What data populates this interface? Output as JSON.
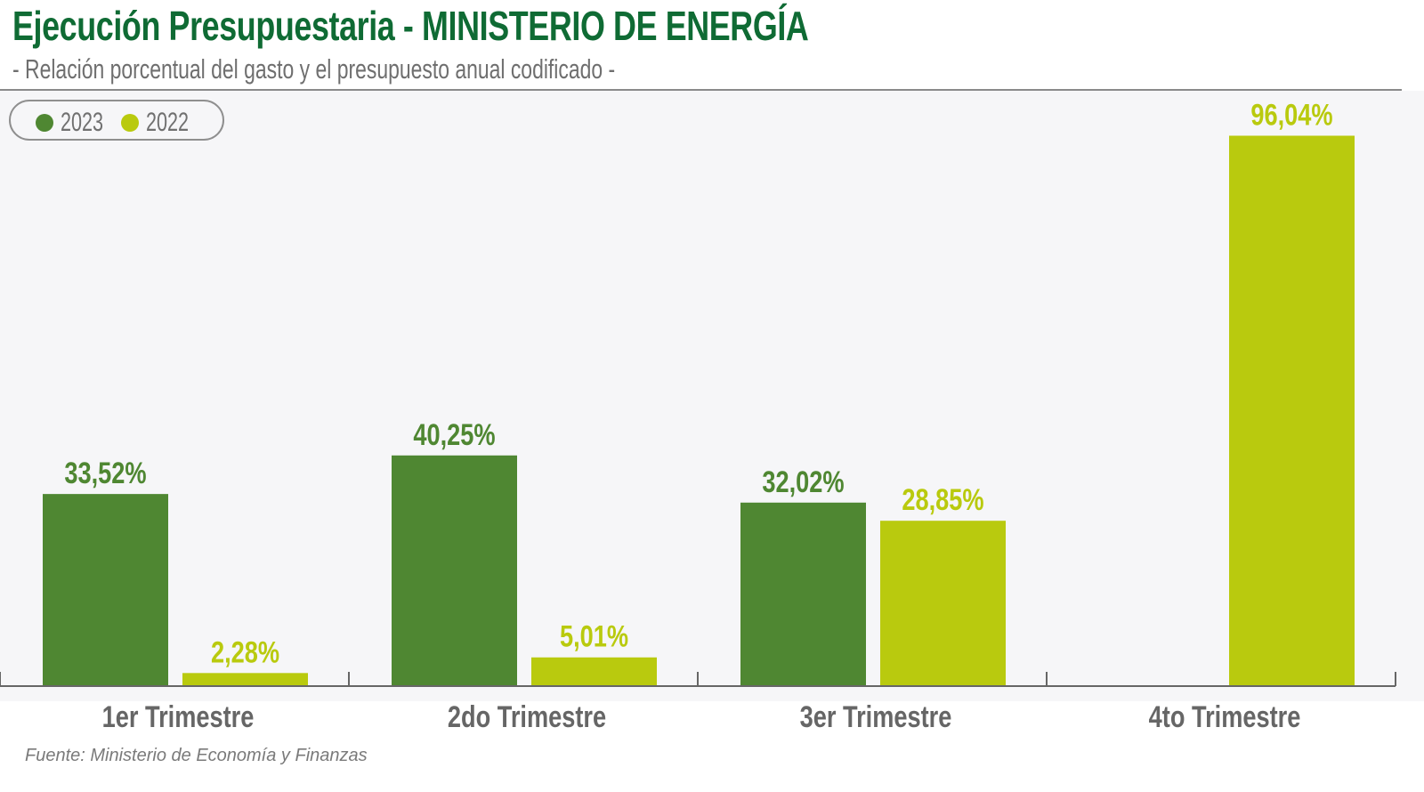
{
  "header": {
    "title": "Ejecución Presupuestaria - MINISTERIO DE ENERGÍA",
    "subtitle": "- Relación porcentual del gasto y el presupuesto anual codificado -"
  },
  "source": "Fuente: Ministerio de Economía y Finanzas",
  "colors": {
    "series_2023": "#4f8732",
    "series_2022": "#b9ca0e",
    "title": "#0f6b34"
  },
  "chart_data": {
    "type": "bar",
    "categories": [
      "1er Trimestre",
      "2do Trimestre",
      "3er Trimestre",
      "4to Trimestre"
    ],
    "series": [
      {
        "name": "2023",
        "values": [
          33.52,
          40.25,
          32.02,
          null
        ],
        "labels": [
          "33,52%",
          "40,25%",
          "32,02%",
          null
        ]
      },
      {
        "name": "2022",
        "values": [
          2.28,
          5.01,
          28.85,
          96.04
        ],
        "labels": [
          "2,28%",
          "5,01%",
          "28,85%",
          "96,04%"
        ]
      }
    ],
    "ylim": [
      0,
      100
    ],
    "grid": false,
    "legend": "top-left",
    "xlabel": "",
    "ylabel": ""
  }
}
